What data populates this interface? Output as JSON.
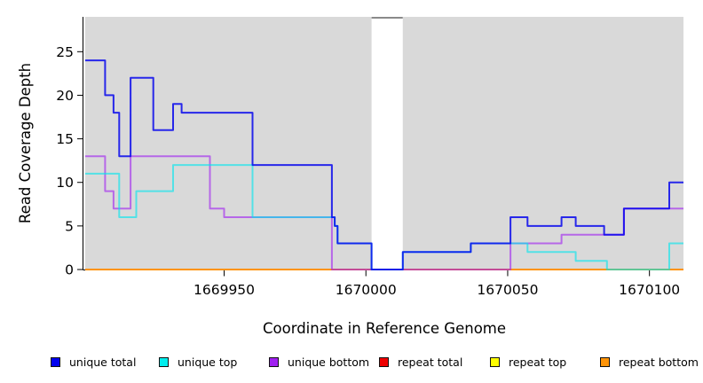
{
  "figure": {
    "background": "#ffffff",
    "plot_bg": "#d9d9d9",
    "gap_cap_color": "#8a8a8a"
  },
  "chart_data": {
    "type": "line",
    "subtype": "step-coverage",
    "title": "",
    "xlabel": "Coordinate in Reference Genome",
    "ylabel": "Read Coverage Depth",
    "x_range": [
      1669901,
      1670112
    ],
    "y_range": [
      0,
      29
    ],
    "x_ticks": [
      1669950,
      1670000,
      1670050,
      1670100
    ],
    "y_ticks": [
      0,
      5,
      10,
      15,
      20,
      25
    ],
    "grid": false,
    "legend_position": "bottom",
    "gap_region": {
      "start": 1670002,
      "end": 1670013
    },
    "series": [
      {
        "name": "repeat total",
        "color": "#ee0000",
        "opacity": 1,
        "steps": [
          [
            1669901,
            0
          ]
        ]
      },
      {
        "name": "repeat top",
        "color": "#ffff00",
        "opacity": 1,
        "steps": [
          [
            1669901,
            0
          ]
        ]
      },
      {
        "name": "repeat bottom",
        "color": "#ff9408",
        "opacity": 1,
        "steps": [
          [
            1669901,
            0
          ]
        ]
      },
      {
        "name": "unique bottom",
        "color": "#a020f0",
        "opacity": 0.62,
        "steps": [
          [
            1669901,
            13
          ],
          [
            1669908,
            9
          ],
          [
            1669911,
            7
          ],
          [
            1669917,
            13
          ],
          [
            1669945,
            7
          ],
          [
            1669950,
            6
          ],
          [
            1669988,
            0
          ],
          [
            1670051,
            3
          ],
          [
            1670069,
            4
          ],
          [
            1670091,
            7
          ]
        ]
      },
      {
        "name": "unique top",
        "color": "#00e5ee",
        "opacity": 0.62,
        "steps": [
          [
            1669901,
            11
          ],
          [
            1669913,
            6
          ],
          [
            1669919,
            9
          ],
          [
            1669932,
            12
          ],
          [
            1669960,
            6
          ],
          [
            1669989,
            5
          ],
          [
            1669990,
            3
          ],
          [
            1670002,
            0
          ],
          [
            1670013,
            2
          ],
          [
            1670037,
            3
          ],
          [
            1670057,
            2
          ],
          [
            1670074,
            1
          ],
          [
            1670085,
            0
          ],
          [
            1670107,
            3
          ]
        ]
      },
      {
        "name": "unique total",
        "color": "#0000ee",
        "opacity": 0.82,
        "steps": [
          [
            1669901,
            24
          ],
          [
            1669908,
            20
          ],
          [
            1669911,
            18
          ],
          [
            1669913,
            13
          ],
          [
            1669917,
            22
          ],
          [
            1669925,
            16
          ],
          [
            1669932,
            19
          ],
          [
            1669935,
            18
          ],
          [
            1669960,
            12
          ],
          [
            1669988,
            6
          ],
          [
            1669989,
            5
          ],
          [
            1669990,
            3
          ],
          [
            1670002,
            0
          ],
          [
            1670013,
            2
          ],
          [
            1670037,
            3
          ],
          [
            1670051,
            6
          ],
          [
            1670057,
            5
          ],
          [
            1670069,
            6
          ],
          [
            1670074,
            5
          ],
          [
            1670084,
            4
          ],
          [
            1670091,
            7
          ],
          [
            1670107,
            10
          ]
        ]
      }
    ],
    "legend": [
      {
        "label": "unique total",
        "color": "#0000ee"
      },
      {
        "label": "unique top",
        "color": "#00eeee"
      },
      {
        "label": "unique bottom",
        "color": "#a020f0"
      },
      {
        "label": "repeat total",
        "color": "#ee0000"
      },
      {
        "label": "repeat top",
        "color": "#ffff00"
      },
      {
        "label": "repeat bottom",
        "color": "#ff9408"
      }
    ]
  }
}
